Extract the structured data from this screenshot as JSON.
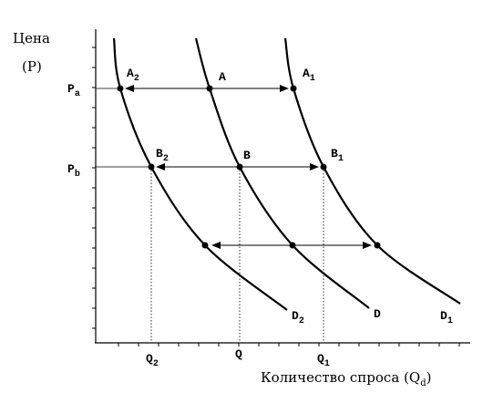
{
  "y_axis": {
    "title": "Цена",
    "unit": "(P)"
  },
  "x_axis": {
    "title": "Количество спроса (Q",
    "title_sub": "d",
    "title_end": ")"
  },
  "price_levels": [
    {
      "main": "P",
      "sub": "a"
    },
    {
      "main": "P",
      "sub": "b"
    }
  ],
  "quantities": [
    {
      "main": "Q",
      "sub": "2"
    },
    {
      "main": "Q",
      "sub": ""
    },
    {
      "main": "Q",
      "sub": "1"
    }
  ],
  "points": [
    {
      "main": "A",
      "sub": "2"
    },
    {
      "main": "A",
      "sub": ""
    },
    {
      "main": "A",
      "sub": "1"
    },
    {
      "main": "B",
      "sub": "2"
    },
    {
      "main": "B",
      "sub": ""
    },
    {
      "main": "B",
      "sub": "1"
    }
  ],
  "curves": [
    {
      "main": "D",
      "sub": "2"
    },
    {
      "main": "D",
      "sub": ""
    },
    {
      "main": "D",
      "sub": "1"
    }
  ]
}
